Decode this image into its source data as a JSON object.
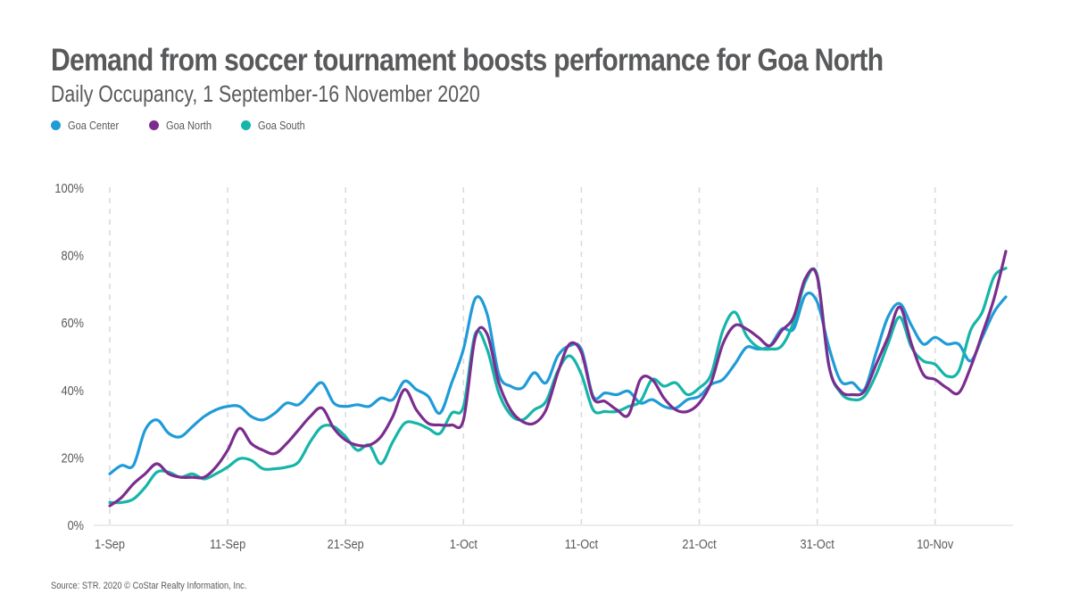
{
  "header": {
    "title": "Demand from soccer tournament boosts performance for Goa North",
    "subtitle": "Daily Occupancy, 1 September-16 November 2020"
  },
  "footer": {
    "source": "Source: STR. 2020 © CoStar Realty Information, Inc."
  },
  "chart_data": {
    "type": "line",
    "title": "Demand from soccer tournament boosts performance for Goa North",
    "subtitle": "Daily Occupancy, 1 September-16 November 2020",
    "xlabel": "",
    "ylabel": "",
    "x_start": "1-Sep",
    "x_end": "16-Nov",
    "x_day_count": 77,
    "x_ticks": [
      {
        "label": "1-Sep",
        "day": 0
      },
      {
        "label": "11-Sep",
        "day": 10
      },
      {
        "label": "21-Sep",
        "day": 20
      },
      {
        "label": "1-Oct",
        "day": 30
      },
      {
        "label": "11-Oct",
        "day": 40
      },
      {
        "label": "21-Oct",
        "day": 50
      },
      {
        "label": "31-Oct",
        "day": 60
      },
      {
        "label": "10-Nov",
        "day": 70
      }
    ],
    "y_ticks": [
      {
        "label": "0%",
        "value": 0
      },
      {
        "label": "20%",
        "value": 20
      },
      {
        "label": "40%",
        "value": 40
      },
      {
        "label": "60%",
        "value": 60
      },
      {
        "label": "80%",
        "value": 80
      },
      {
        "label": "100%",
        "value": 100
      }
    ],
    "ylim": [
      0,
      100
    ],
    "grid": "vertical-dashed",
    "legend_position": "top-left",
    "series": [
      {
        "name": "Goa Center",
        "color": "#1f9bd7",
        "values": [
          15,
          17.5,
          17.5,
          28,
          31,
          27,
          26,
          29,
          32,
          34,
          35,
          35,
          32,
          31,
          33,
          36,
          35.5,
          39,
          42,
          36,
          35,
          35.5,
          35,
          37.5,
          37,
          42.5,
          40,
          38,
          33,
          42,
          52,
          67,
          62.5,
          44.5,
          41,
          40.5,
          45,
          42,
          50,
          53,
          52,
          38,
          39,
          38.5,
          39.5,
          36,
          37,
          35,
          34.5,
          37,
          38,
          41.5,
          43,
          47.5,
          52.5,
          52,
          53,
          58,
          58,
          68,
          66,
          52.5,
          42.5,
          42,
          40,
          51,
          61.5,
          65.5,
          59,
          53.5,
          55.5,
          53.5,
          53.5,
          48.5,
          55.5,
          63,
          67.5
        ]
      },
      {
        "name": "Goa North",
        "color": "#7b2d8e",
        "values": [
          5.5,
          8,
          12,
          15,
          18,
          15,
          14,
          14,
          14,
          17,
          22,
          28.5,
          24,
          22,
          21,
          24,
          28,
          32,
          34.5,
          28.5,
          25,
          23.5,
          23.5,
          26,
          32,
          40,
          34,
          30,
          29.5,
          29.5,
          31,
          55.5,
          56.5,
          42,
          34,
          30.5,
          30,
          34,
          45,
          53.5,
          51,
          37.5,
          36.5,
          34,
          32.5,
          43,
          43,
          37.5,
          34,
          33.5,
          36,
          42,
          53.5,
          59,
          58,
          55.5,
          53,
          57.5,
          61.5,
          73,
          73.5,
          47,
          39.5,
          38.5,
          39.5,
          47.5,
          55.5,
          64.5,
          53.5,
          44.5,
          43,
          40.5,
          39,
          46.5,
          56.5,
          67,
          81
        ]
      },
      {
        "name": "Goa South",
        "color": "#15b5a8",
        "values": [
          6.5,
          6.5,
          7.5,
          11,
          15.5,
          15.5,
          14,
          15,
          13.5,
          15,
          17,
          19.5,
          19,
          16.5,
          16.5,
          17,
          18.5,
          24.5,
          29,
          29,
          26,
          22,
          23.5,
          18,
          24.5,
          30,
          30,
          28.5,
          27,
          33,
          35,
          56.5,
          52,
          39,
          32.5,
          31,
          34,
          36.5,
          45.5,
          50,
          44.5,
          34,
          33.5,
          33.5,
          35,
          36.5,
          43,
          41,
          42,
          38.5,
          40.5,
          44.5,
          57.5,
          63,
          56,
          52.5,
          52,
          53,
          60,
          72,
          74,
          47,
          39,
          37,
          38,
          44.5,
          53.5,
          61.5,
          52.5,
          48.5,
          47.5,
          44,
          45.5,
          57.5,
          63,
          73.5,
          76
        ]
      }
    ]
  }
}
